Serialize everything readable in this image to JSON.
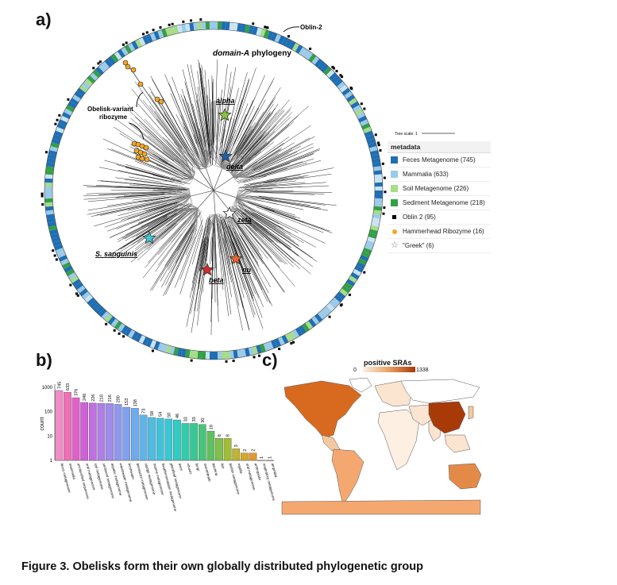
{
  "panels": {
    "a": "a)",
    "b": "b)",
    "c": "c)"
  },
  "tree": {
    "title_prefix": "domain-A",
    "title_suffix": " phylogeny",
    "callout_oblin": "Oblin-2",
    "callout_ribozyme_line1": "Obelisk-variant",
    "callout_ribozyme_line2": "ribozyme",
    "tree_scale": "Tree scale: 1",
    "named": [
      {
        "label": "alpha",
        "color": "#86c440"
      },
      {
        "label": "delta",
        "color": "#1f5fa8"
      },
      {
        "label": "zeta",
        "color": "#ffffff"
      },
      {
        "label": "S. sanguinis",
        "color": "#3ec8d8"
      },
      {
        "label": "nu",
        "color": "#e8642a"
      },
      {
        "label": "beta",
        "color": "#d42a2a"
      }
    ]
  },
  "legend": {
    "title": "metadata",
    "items": [
      {
        "label": "Feces Metagenome (745)",
        "color": "#1f6fb4",
        "shape": "square"
      },
      {
        "label": "Mammalia (633)",
        "color": "#9ccae8",
        "shape": "square"
      },
      {
        "label": "Soil Metagenome (226)",
        "color": "#a6dc8a",
        "shape": "square"
      },
      {
        "label": "Sediment Metagenome (218)",
        "color": "#33a046",
        "shape": "square"
      },
      {
        "label": "Oblin 2 (95)",
        "color": "#000000",
        "shape": "small-square"
      },
      {
        "label": "Hammerhead Ribozyme (16)",
        "color": "#f5a623",
        "shape": "circle"
      },
      {
        "label": "\"Greek\" (6)",
        "color": "#ffffff",
        "shape": "star"
      }
    ]
  },
  "chart_data": {
    "type": "bar",
    "ylabel": "count",
    "yscale": "log",
    "ylim": [
      1,
      1000
    ],
    "yticks": [
      "1",
      "10",
      "100",
      "1000"
    ],
    "categories": [
      "feces metagenome",
      "mammalia",
      "unclassified sequences",
      "oral metagenome",
      "soil metagenome",
      "sediment metagenome",
      "aquatic metagenome",
      "wastewater metagenome",
      "freshwater",
      "bioreactor metagenome",
      "sludge metagenome",
      "marine metagenome",
      "food/fermentation metagenome",
      "plant/leaf metagenome",
      "aves",
      "viruses",
      "fungi",
      "invertebrate",
      "bacteria",
      "fish",
      "biofilm metagenome",
      "reptilia",
      "oral metagenome",
      "arthropoda",
      "respiratory metagenome",
      "amphibia"
    ],
    "values": [
      745,
      633,
      376,
      240,
      226,
      218,
      216,
      200,
      153,
      138,
      73,
      58,
      54,
      50,
      46,
      33,
      33,
      30,
      16,
      8,
      8,
      3,
      2,
      2,
      1,
      1
    ],
    "colors": [
      "#f28cc8",
      "#f070b8",
      "#e060c8",
      "#d060d8",
      "#c070e0",
      "#b07ee6",
      "#a08cec",
      "#9098ee",
      "#80a0f0",
      "#70aaee",
      "#60b4ea",
      "#50bce4",
      "#40c4de",
      "#38c8d4",
      "#30ccc4",
      "#30ccac",
      "#38c894",
      "#48c47a",
      "#60c060",
      "#80c048",
      "#a0bc38",
      "#c0b430",
      "#d4a82c",
      "#e09a2c",
      "#e8902e",
      "#e88830"
    ]
  },
  "map": {
    "scale_title": "positive SRAs",
    "scale_min": "0",
    "scale_max": "1338"
  },
  "caption": "Figure 3. Obelisks form their own globally distributed phylogenetic group"
}
